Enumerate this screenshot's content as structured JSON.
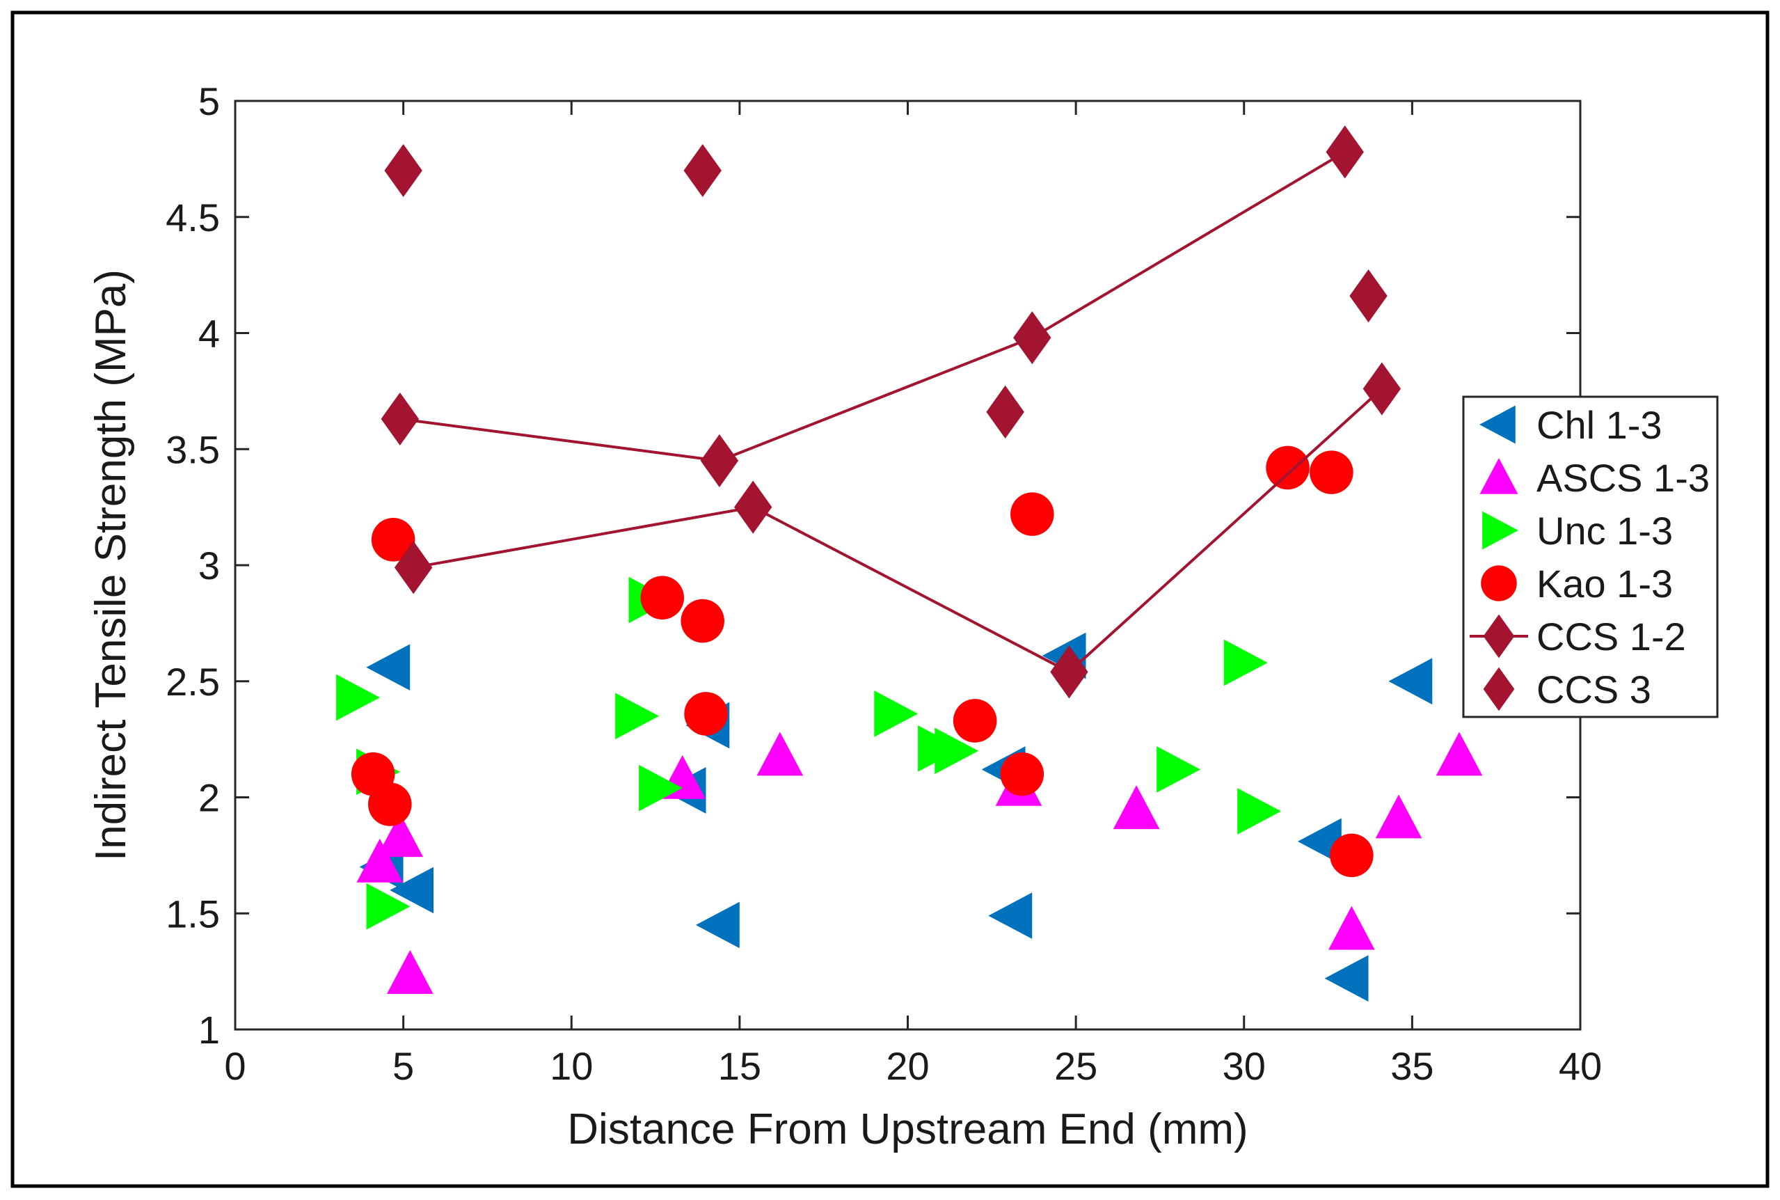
{
  "chart_data": {
    "type": "scatter",
    "title": "",
    "xlabel": "Distance From Upstream End (mm)",
    "ylabel": "Indirect Tensile Strength (MPa)",
    "xlim": [
      0,
      40
    ],
    "ylim": [
      1,
      5
    ],
    "xticks": [
      0,
      5,
      10,
      15,
      20,
      25,
      30,
      35,
      40
    ],
    "yticks": [
      1,
      1.5,
      2,
      2.5,
      3,
      3.5,
      4,
      4.5,
      5
    ],
    "xtick_labels": [
      "0",
      "5",
      "10",
      "15",
      "20",
      "25",
      "30",
      "35",
      "40"
    ],
    "ytick_labels": [
      "1",
      "1.5",
      "2",
      "2.5",
      "3",
      "3.5",
      "4",
      "4.5",
      "5"
    ],
    "grid": false,
    "legend_position": "right",
    "series": [
      {
        "name": "Chl 1-3",
        "marker": "triangle-left",
        "color": "#0072BD",
        "x": [
          4.4,
          4.6,
          5.3,
          13.4,
          14.1,
          14.4,
          22.9,
          23.1,
          24.7,
          32.3,
          33.1,
          35.0
        ],
        "y": [
          1.7,
          2.56,
          1.6,
          2.03,
          2.31,
          1.45,
          2.12,
          1.49,
          2.61,
          1.81,
          1.22,
          2.5
        ]
      },
      {
        "name": "ASCS 1-3",
        "marker": "triangle-up",
        "color": "#FF00FF",
        "x": [
          4.3,
          4.9,
          5.2,
          13.3,
          16.2,
          23.3,
          26.8,
          33.2,
          34.6,
          36.4
        ],
        "y": [
          1.72,
          1.83,
          1.24,
          2.08,
          2.18,
          2.05,
          1.95,
          1.43,
          1.91,
          2.18
        ]
      },
      {
        "name": "Unc 1-3",
        "marker": "triangle-right",
        "color": "#00FF00",
        "x": [
          3.6,
          4.2,
          4.5,
          11.9,
          12.3,
          12.6,
          19.6,
          20.9,
          21.4,
          28.0,
          30.0,
          30.4
        ],
        "y": [
          2.43,
          2.11,
          1.53,
          2.35,
          2.85,
          2.04,
          2.36,
          2.21,
          2.2,
          2.12,
          2.58,
          1.94
        ]
      },
      {
        "name": "Kao 1-3",
        "marker": "circle",
        "color": "#FF0000",
        "x": [
          4.1,
          4.6,
          4.7,
          12.7,
          13.9,
          14.0,
          22.0,
          23.4,
          23.7,
          31.3,
          32.6,
          33.2
        ],
        "y": [
          2.1,
          1.97,
          3.11,
          2.86,
          2.76,
          2.36,
          2.33,
          2.1,
          3.22,
          3.42,
          3.4,
          1.75
        ]
      },
      {
        "name": "CCS 1-2",
        "marker": "diamond",
        "color": "#A2142F",
        "line": true,
        "lines": [
          {
            "x": [
              4.9,
              14.4,
              23.7,
              33.0
            ],
            "y": [
              3.63,
              3.45,
              3.98,
              4.78
            ]
          },
          {
            "x": [
              5.3,
              15.4,
              24.8,
              34.1
            ],
            "y": [
              2.99,
              3.25,
              2.54,
              3.76
            ]
          }
        ]
      },
      {
        "name": "CCS 3",
        "marker": "diamond",
        "color": "#A2142F",
        "x": [
          5.0,
          13.9,
          22.9,
          33.7
        ],
        "y": [
          4.7,
          4.7,
          3.66,
          4.16
        ]
      }
    ]
  }
}
